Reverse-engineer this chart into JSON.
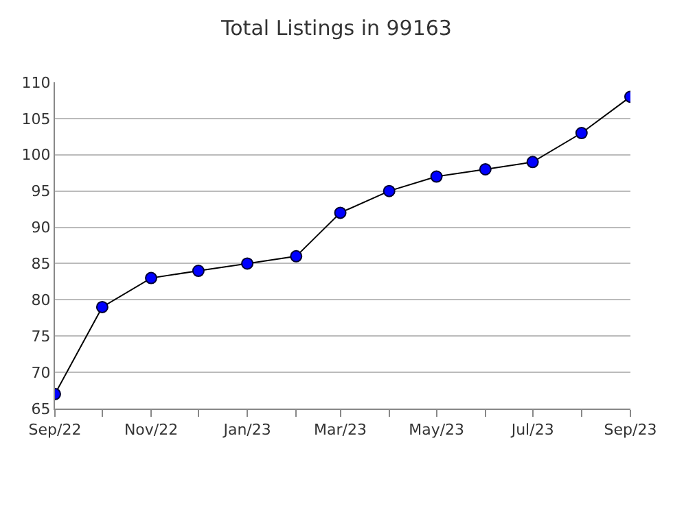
{
  "chart_data": {
    "type": "line",
    "title": "Total Listings in 99163",
    "x": [
      "2022-09",
      "2022-10",
      "2022-11",
      "2022-12",
      "2023-01",
      "2023-02",
      "2023-03",
      "2023-04",
      "2023-05",
      "2023-06",
      "2023-07",
      "2023-08",
      "2023-09"
    ],
    "series": [
      {
        "color": "#0000ff",
        "values": [
          67,
          79,
          83,
          84,
          85,
          86,
          92,
          95,
          97,
          98,
          99,
          103,
          108
        ]
      }
    ],
    "xlim": [
      "2022-09",
      "2023-09"
    ],
    "xticks": [
      {
        "value": "2022-09",
        "label": "Sep/22"
      },
      {
        "value": "2022-10",
        "label": null
      },
      {
        "value": "2022-11",
        "label": "Nov/22"
      },
      {
        "value": "2022-12",
        "label": null
      },
      {
        "value": "2023-01",
        "label": "Jan/23"
      },
      {
        "value": "2023-02",
        "label": null
      },
      {
        "value": "2023-03",
        "label": "Mar/23"
      },
      {
        "value": "2023-04",
        "label": null
      },
      {
        "value": "2023-05",
        "label": "May/23"
      },
      {
        "value": "2023-06",
        "label": null
      },
      {
        "value": "2023-07",
        "label": "Jul/23"
      },
      {
        "value": "2023-08",
        "label": null
      },
      {
        "value": "2023-09",
        "label": "Sep/23"
      }
    ],
    "ylim": [
      65,
      110
    ],
    "yticks": [
      65,
      70,
      75,
      80,
      85,
      90,
      95,
      100,
      105,
      110
    ],
    "grid": "y",
    "marker": "circle",
    "line_style": "solid",
    "legend": false
  }
}
